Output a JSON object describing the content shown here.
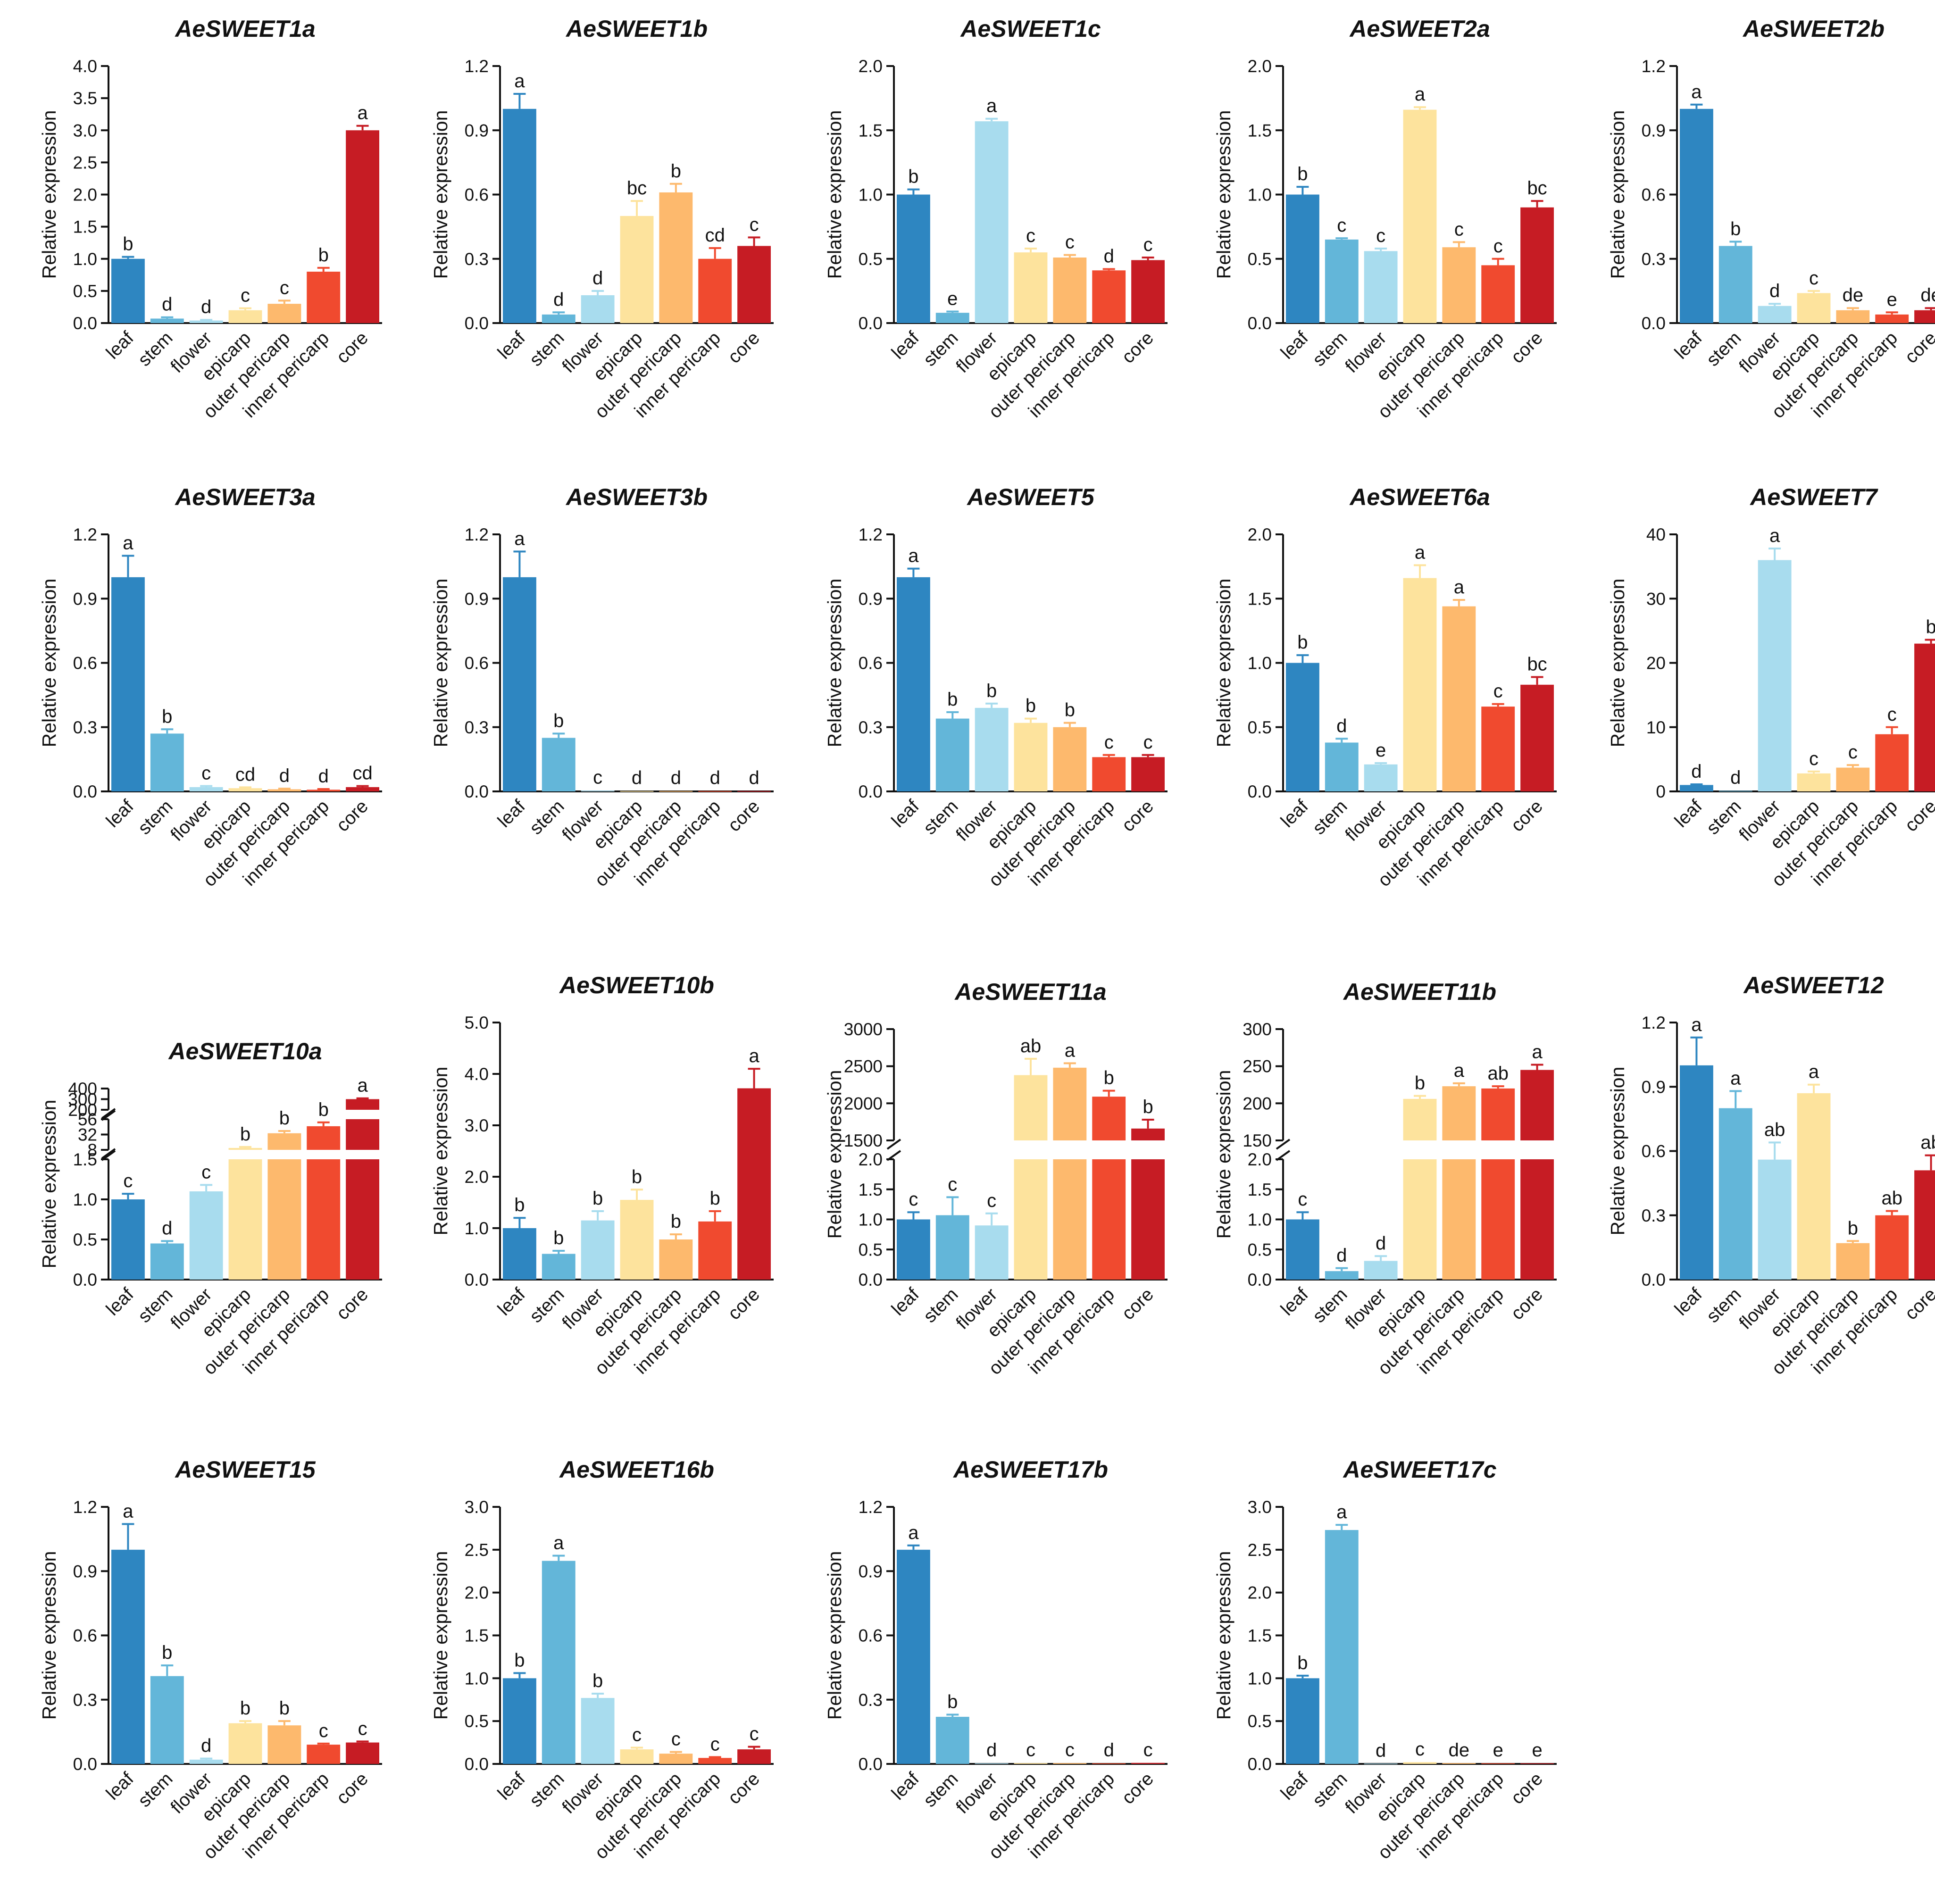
{
  "categories": [
    "leaf",
    "stem",
    "flower",
    "epicarp",
    "outer pericarp",
    "inner pericarp",
    "core"
  ],
  "ylabel": "Relative expression",
  "colors": [
    "#2e86c1",
    "#63b6d9",
    "#a8dcee",
    "#fde39d",
    "#fdb96d",
    "#f04a2f",
    "#c61c24"
  ],
  "chart_data": [
    {
      "type": "bar",
      "title": "AeSWEET1a",
      "ylabel": "Relative expression",
      "categories": [
        "leaf",
        "stem",
        "flower",
        "epicarp",
        "outer pericarp",
        "inner pericarp",
        "core"
      ],
      "ylim": [
        0,
        4
      ],
      "ticks": [
        "0.0",
        "0.5",
        "1.0",
        "1.5",
        "2.0",
        "2.5",
        "3.0",
        "3.5",
        "4.0"
      ],
      "values": [
        1.0,
        0.07,
        0.04,
        0.2,
        0.3,
        0.8,
        3.0
      ],
      "errors": [
        0.03,
        0.02,
        0.01,
        0.03,
        0.05,
        0.06,
        0.07
      ],
      "letters": [
        "b",
        "d",
        "d",
        "c",
        "c",
        "b",
        "a"
      ]
    },
    {
      "type": "bar",
      "title": "AeSWEET1b",
      "ylabel": "Relative expression",
      "categories": [
        "leaf",
        "stem",
        "flower",
        "epicarp",
        "outer pericarp",
        "inner pericarp",
        "core"
      ],
      "ylim": [
        0,
        1.2
      ],
      "ticks": [
        "0.0",
        "0.3",
        "0.6",
        "0.9",
        "1.2"
      ],
      "values": [
        1.0,
        0.04,
        0.13,
        0.5,
        0.61,
        0.3,
        0.36
      ],
      "errors": [
        0.07,
        0.01,
        0.02,
        0.07,
        0.04,
        0.05,
        0.04
      ],
      "letters": [
        "a",
        "d",
        "d",
        "bc",
        "b",
        "cd",
        "c"
      ]
    },
    {
      "type": "bar",
      "title": "AeSWEET1c",
      "ylabel": "Relative expression",
      "categories": [
        "leaf",
        "stem",
        "flower",
        "epicarp",
        "outer pericarp",
        "inner pericarp",
        "core"
      ],
      "ylim": [
        0,
        2
      ],
      "ticks": [
        "0.0",
        "0.5",
        "1.0",
        "1.5",
        "2.0"
      ],
      "values": [
        1.0,
        0.08,
        1.57,
        0.55,
        0.51,
        0.41,
        0.49
      ],
      "errors": [
        0.04,
        0.01,
        0.02,
        0.03,
        0.02,
        0.01,
        0.02
      ],
      "letters": [
        "b",
        "e",
        "a",
        "c",
        "c",
        "d",
        "c"
      ]
    },
    {
      "type": "bar",
      "title": "AeSWEET2a",
      "ylabel": "Relative expression",
      "categories": [
        "leaf",
        "stem",
        "flower",
        "epicarp",
        "outer pericarp",
        "inner pericarp",
        "core"
      ],
      "ylim": [
        0,
        2
      ],
      "ticks": [
        "0.0",
        "0.5",
        "1.0",
        "1.5",
        "2.0"
      ],
      "values": [
        1.0,
        0.65,
        0.56,
        1.66,
        0.59,
        0.45,
        0.9
      ],
      "errors": [
        0.06,
        0.01,
        0.02,
        0.02,
        0.04,
        0.05,
        0.05
      ],
      "letters": [
        "b",
        "c",
        "c",
        "a",
        "c",
        "c",
        "bc"
      ]
    },
    {
      "type": "bar",
      "title": "AeSWEET2b",
      "ylabel": "Relative expression",
      "categories": [
        "leaf",
        "stem",
        "flower",
        "epicarp",
        "outer pericarp",
        "inner pericarp",
        "core"
      ],
      "ylim": [
        0,
        1.2
      ],
      "ticks": [
        "0.0",
        "0.3",
        "0.6",
        "0.9",
        "1.2"
      ],
      "values": [
        1.0,
        0.36,
        0.08,
        0.14,
        0.06,
        0.04,
        0.06
      ],
      "errors": [
        0.02,
        0.02,
        0.01,
        0.01,
        0.01,
        0.01,
        0.01
      ],
      "letters": [
        "a",
        "b",
        "d",
        "c",
        "de",
        "e",
        "de"
      ]
    },
    {
      "type": "bar",
      "title": "AeSWEET3a",
      "ylabel": "Relative expression",
      "categories": [
        "leaf",
        "stem",
        "flower",
        "epicarp",
        "outer pericarp",
        "inner pericarp",
        "core"
      ],
      "ylim": [
        0,
        1.2
      ],
      "ticks": [
        "0.0",
        "0.3",
        "0.6",
        "0.9",
        "1.2"
      ],
      "values": [
        1.0,
        0.27,
        0.02,
        0.015,
        0.01,
        0.008,
        0.02
      ],
      "errors": [
        0.1,
        0.02,
        0.005,
        0.004,
        0.003,
        0.003,
        0.005
      ],
      "letters": [
        "a",
        "b",
        "c",
        "cd",
        "d",
        "d",
        "cd"
      ]
    },
    {
      "type": "bar",
      "title": "AeSWEET3b",
      "ylabel": "Relative expression",
      "categories": [
        "leaf",
        "stem",
        "flower",
        "epicarp",
        "outer pericarp",
        "inner pericarp",
        "core"
      ],
      "ylim": [
        0,
        1.2
      ],
      "ticks": [
        "0.0",
        "0.3",
        "0.6",
        "0.9",
        "1.2"
      ],
      "values": [
        1.0,
        0.25,
        0.004,
        0.002,
        0.002,
        0.002,
        0.002
      ],
      "errors": [
        0.12,
        0.02,
        0.001,
        0.001,
        0.001,
        0.001,
        0.001
      ],
      "letters": [
        "a",
        "b",
        "c",
        "d",
        "d",
        "d",
        "d"
      ]
    },
    {
      "type": "bar",
      "title": "AeSWEET5",
      "ylabel": "Relative expression",
      "categories": [
        "leaf",
        "stem",
        "flower",
        "epicarp",
        "outer pericarp",
        "inner pericarp",
        "core"
      ],
      "ylim": [
        0,
        1.2
      ],
      "ticks": [
        "0.0",
        "0.3",
        "0.6",
        "0.9",
        "1.2"
      ],
      "values": [
        1.0,
        0.34,
        0.39,
        0.32,
        0.3,
        0.16,
        0.16
      ],
      "errors": [
        0.04,
        0.03,
        0.02,
        0.02,
        0.02,
        0.01,
        0.01
      ],
      "letters": [
        "a",
        "b",
        "b",
        "b",
        "b",
        "c",
        "c"
      ]
    },
    {
      "type": "bar",
      "title": "AeSWEET6a",
      "ylabel": "Relative expression",
      "categories": [
        "leaf",
        "stem",
        "flower",
        "epicarp",
        "outer pericarp",
        "inner pericarp",
        "core"
      ],
      "ylim": [
        0,
        2
      ],
      "ticks": [
        "0.0",
        "0.5",
        "1.0",
        "1.5",
        "2.0"
      ],
      "values": [
        1.0,
        0.38,
        0.21,
        1.66,
        1.44,
        0.66,
        0.83
      ],
      "errors": [
        0.06,
        0.03,
        0.01,
        0.1,
        0.05,
        0.02,
        0.06
      ],
      "letters": [
        "b",
        "d",
        "e",
        "a",
        "a",
        "c",
        "bc"
      ]
    },
    {
      "type": "bar",
      "title": "AeSWEET7",
      "ylabel": "Relative expression",
      "categories": [
        "leaf",
        "stem",
        "flower",
        "epicarp",
        "outer pericarp",
        "inner pericarp",
        "core"
      ],
      "ylim": [
        0,
        40
      ],
      "ticks": [
        "0",
        "10",
        "20",
        "30",
        "40"
      ],
      "values": [
        1.0,
        0.1,
        36.0,
        2.8,
        3.7,
        8.9,
        23.0
      ],
      "errors": [
        0.1,
        0.05,
        1.8,
        0.3,
        0.4,
        1.1,
        0.6
      ],
      "letters": [
        "d",
        "d",
        "a",
        "c",
        "c",
        "c",
        "b"
      ]
    },
    {
      "type": "bar",
      "title": "AeSWEET10a",
      "ylabel": "Relative expression",
      "categories": [
        "leaf",
        "stem",
        "flower",
        "epicarp",
        "outer pericarp",
        "inner pericarp",
        "core"
      ],
      "axis_break": true,
      "segments": [
        {
          "min": 0,
          "max": 1.5,
          "ticks": [
            "0.0",
            "0.5",
            "1.0",
            "1.5"
          ]
        },
        {
          "min": 8,
          "max": 56,
          "ticks": [
            "8",
            "32",
            "56"
          ]
        },
        {
          "min": 200,
          "max": 400,
          "ticks": [
            "200",
            "300",
            "400"
          ]
        }
      ],
      "values": [
        1.0,
        0.45,
        1.1,
        11,
        34,
        45,
        300
      ],
      "errors": [
        0.07,
        0.03,
        0.08,
        1.5,
        3.5,
        6,
        8
      ],
      "letters": [
        "c",
        "d",
        "c",
        "b",
        "b",
        "b",
        "a"
      ]
    },
    {
      "type": "bar",
      "title": "AeSWEET10b",
      "ylabel": "Relative expression",
      "categories": [
        "leaf",
        "stem",
        "flower",
        "epicarp",
        "outer pericarp",
        "inner pericarp",
        "core"
      ],
      "ylim": [
        0,
        5
      ],
      "ticks": [
        "0.0",
        "1.0",
        "2.0",
        "3.0",
        "4.0",
        "5.0"
      ],
      "values": [
        1.0,
        0.5,
        1.15,
        1.55,
        0.78,
        1.13,
        3.72
      ],
      "errors": [
        0.2,
        0.06,
        0.18,
        0.2,
        0.1,
        0.2,
        0.38
      ],
      "letters": [
        "b",
        "b",
        "b",
        "b",
        "b",
        "b",
        "a"
      ]
    },
    {
      "type": "bar",
      "title": "AeSWEET11a",
      "ylabel": "Relative expression",
      "categories": [
        "leaf",
        "stem",
        "flower",
        "epicarp",
        "outer pericarp",
        "inner pericarp",
        "core"
      ],
      "axis_break": true,
      "segments": [
        {
          "min": 0,
          "max": 2,
          "ticks": [
            "0.0",
            "0.5",
            "1.0",
            "1.5",
            "2.0"
          ]
        },
        {
          "min": 1500,
          "max": 3000,
          "ticks": [
            "1500",
            "2000",
            "2500",
            "3000"
          ]
        }
      ],
      "values": [
        1.0,
        1.07,
        0.9,
        2380,
        2480,
        2090,
        1660
      ],
      "errors": [
        0.12,
        0.3,
        0.2,
        220,
        60,
        80,
        120
      ],
      "letters": [
        "c",
        "c",
        "c",
        "ab",
        "a",
        "b",
        "b"
      ]
    },
    {
      "type": "bar",
      "title": "AeSWEET11b",
      "ylabel": "Relative expression",
      "categories": [
        "leaf",
        "stem",
        "flower",
        "epicarp",
        "outer pericarp",
        "inner pericarp",
        "core"
      ],
      "axis_break": true,
      "segments": [
        {
          "min": 0,
          "max": 2,
          "ticks": [
            "0.0",
            "0.5",
            "1.0",
            "1.5",
            "2.0"
          ]
        },
        {
          "min": 150,
          "max": 300,
          "ticks": [
            "150",
            "200",
            "250",
            "300"
          ]
        }
      ],
      "values": [
        1.0,
        0.14,
        0.31,
        206,
        223,
        220,
        245
      ],
      "errors": [
        0.12,
        0.05,
        0.08,
        4,
        4,
        3,
        7
      ],
      "letters": [
        "c",
        "d",
        "d",
        "b",
        "a",
        "ab",
        "a"
      ]
    },
    {
      "type": "bar",
      "title": "AeSWEET12",
      "ylabel": "Relative expression",
      "categories": [
        "leaf",
        "stem",
        "flower",
        "epicarp",
        "outer pericarp",
        "inner pericarp",
        "core"
      ],
      "ylim": [
        0,
        1.2
      ],
      "ticks": [
        "0.0",
        "0.3",
        "0.6",
        "0.9",
        "1.2"
      ],
      "values": [
        1.0,
        0.8,
        0.56,
        0.87,
        0.17,
        0.3,
        0.51
      ],
      "errors": [
        0.13,
        0.08,
        0.08,
        0.04,
        0.01,
        0.02,
        0.07
      ],
      "letters": [
        "a",
        "a",
        "ab",
        "a",
        "b",
        "ab",
        "ab"
      ]
    },
    {
      "type": "bar",
      "title": "AeSWEET15",
      "ylabel": "Relative expression",
      "categories": [
        "leaf",
        "stem",
        "flower",
        "epicarp",
        "outer pericarp",
        "inner pericarp",
        "core"
      ],
      "ylim": [
        0,
        1.2
      ],
      "ticks": [
        "0.0",
        "0.3",
        "0.6",
        "0.9",
        "1.2"
      ],
      "values": [
        1.0,
        0.41,
        0.02,
        0.19,
        0.18,
        0.09,
        0.1
      ],
      "errors": [
        0.12,
        0.05,
        0.005,
        0.01,
        0.02,
        0.005,
        0.005
      ],
      "letters": [
        "a",
        "b",
        "d",
        "b",
        "b",
        "c",
        "c"
      ]
    },
    {
      "type": "bar",
      "title": "AeSWEET16b",
      "ylabel": "Relative expression",
      "categories": [
        "leaf",
        "stem",
        "flower",
        "epicarp",
        "outer pericarp",
        "inner pericarp",
        "core"
      ],
      "ylim": [
        0,
        3
      ],
      "ticks": [
        "0.0",
        "0.5",
        "1.0",
        "1.5",
        "2.0",
        "2.5",
        "3.0"
      ],
      "values": [
        1.0,
        2.37,
        0.77,
        0.17,
        0.12,
        0.07,
        0.17
      ],
      "errors": [
        0.06,
        0.06,
        0.05,
        0.02,
        0.02,
        0.01,
        0.03
      ],
      "letters": [
        "b",
        "a",
        "b",
        "c",
        "c",
        "c",
        "c"
      ]
    },
    {
      "type": "bar",
      "title": "AeSWEET17b",
      "ylabel": "Relative expression",
      "categories": [
        "leaf",
        "stem",
        "flower",
        "epicarp",
        "outer pericarp",
        "inner pericarp",
        "core"
      ],
      "ylim": [
        0,
        1.2
      ],
      "ticks": [
        "0.0",
        "0.3",
        "0.6",
        "0.9",
        "1.2"
      ],
      "values": [
        1.0,
        0.22,
        0.003,
        0.004,
        0.004,
        0.003,
        0.005
      ],
      "errors": [
        0.02,
        0.01,
        0.001,
        0.001,
        0.001,
        0.001,
        0.001
      ],
      "letters": [
        "a",
        "b",
        "d",
        "c",
        "c",
        "d",
        "c"
      ]
    },
    {
      "type": "bar",
      "title": "AeSWEET17c",
      "ylabel": "Relative expression",
      "categories": [
        "leaf",
        "stem",
        "flower",
        "epicarp",
        "outer pericarp",
        "inner pericarp",
        "core"
      ],
      "ylim": [
        0,
        3
      ],
      "ticks": [
        "0.0",
        "0.5",
        "1.0",
        "1.5",
        "2.0",
        "2.5",
        "3.0"
      ],
      "values": [
        1.0,
        2.73,
        0.005,
        0.02,
        0.01,
        0.008,
        0.008
      ],
      "errors": [
        0.03,
        0.06,
        0.001,
        0.003,
        0.002,
        0.002,
        0.002
      ],
      "letters": [
        "b",
        "a",
        "d",
        "c",
        "de",
        "e",
        "e"
      ]
    }
  ]
}
